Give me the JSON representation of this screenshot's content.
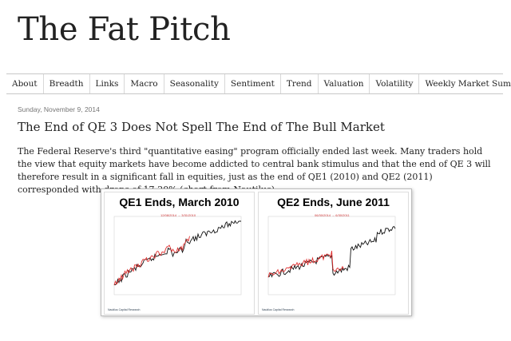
{
  "blog": {
    "title": "The Fat Pitch"
  },
  "nav": {
    "items": [
      "About",
      "Breadth",
      "Links",
      "Macro",
      "Seasonality",
      "Sentiment",
      "Trend",
      "Valuation",
      "Volatility",
      "Weekly Market Summary"
    ]
  },
  "post": {
    "date": "Sunday, November 9, 2014",
    "title": "The End of QE 3 Does Not Spell The End of The Bull Market",
    "body": "The Federal Reserve's third \"quantitative easing\" program officially ended last week. Many traders hold the view that equity markets have become addicted to central bank stimulus and that the end of QE 3 will therefore result in a significant fall in equities, just as the end of QE1 (2010) and QE2 (2011) corresponded with drops of 17-20% (chart from Nautilus)."
  },
  "figure": {
    "left_panel": {
      "title": "QE1 Ends, March 2010",
      "note": "12/08/2014 → 3/31/2010",
      "footer": "Nautilus Capital Research"
    },
    "right_panel": {
      "title": "QE2 Ends, June 2011",
      "note": "06/30/2014 → 6/30/2011",
      "footer": "Nautilus Capital Research"
    }
  },
  "colors": {
    "red_series": "#e03030",
    "black_series": "#111111"
  }
}
